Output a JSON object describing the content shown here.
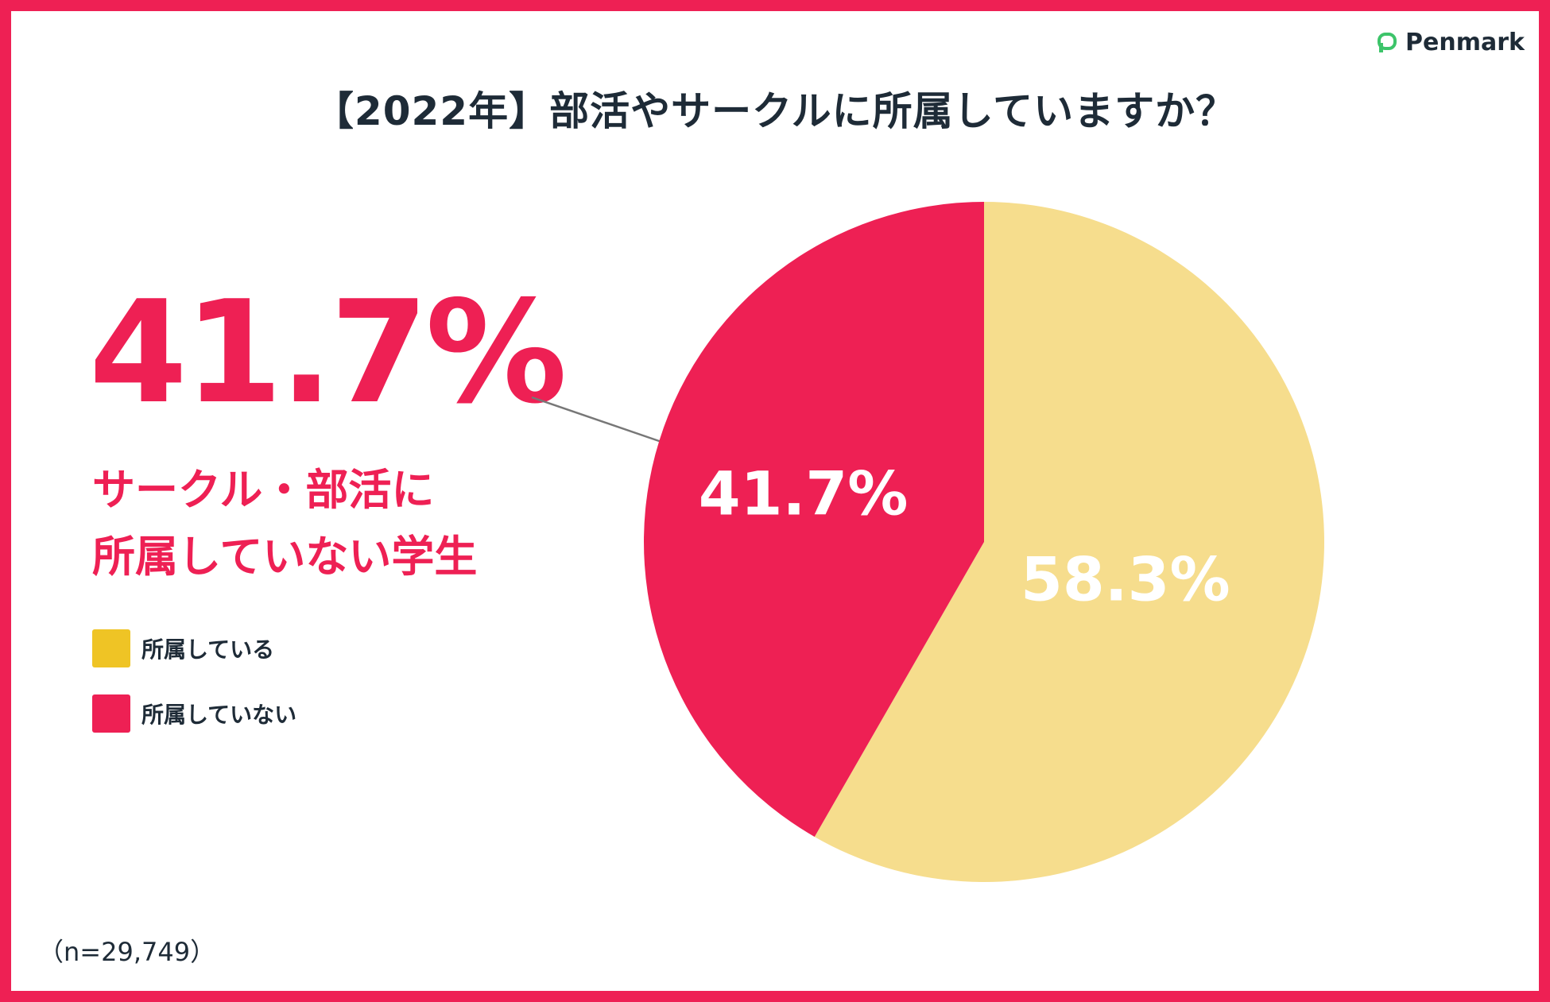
{
  "brand": {
    "name": "Penmark",
    "icon": "speech-bubble-icon"
  },
  "title": "【2022年】部活やサークルに所属していますか？",
  "highlight": {
    "value": "41.7%",
    "caption_line1": "サークル・部活に",
    "caption_line2": "所属していない学生"
  },
  "sample_size": "（n=29,749）",
  "colors": {
    "accent": "#ee2054",
    "yes": "#f6dd8d",
    "yes_legend": "#efc425",
    "no": "#ee2054"
  },
  "chart_data": {
    "type": "pie",
    "title": "【2022年】部活やサークルに所属していますか？",
    "slices": [
      {
        "label": "所属している",
        "value": 58.3,
        "display": "58.3%",
        "color": "#f6dd8d",
        "legend_color": "#efc425"
      },
      {
        "label": "所属していない",
        "value": 41.7,
        "display": "41.7%",
        "color": "#ee2054",
        "legend_color": "#ee2054"
      }
    ],
    "start": "12 o'clock",
    "direction": "clockwise",
    "legend_position": "left"
  }
}
